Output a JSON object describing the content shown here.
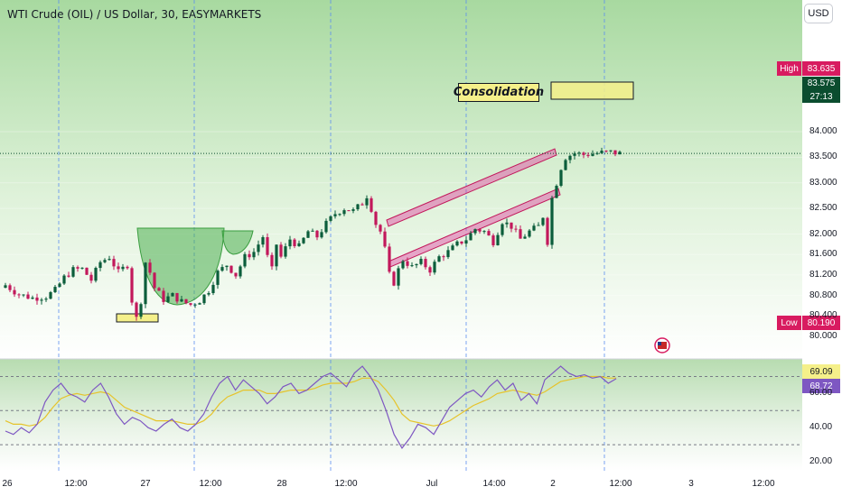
{
  "header": {
    "symbol_title": "WTI Crude (OIL) / US Dollar, 30, EASYMARKETS",
    "currency_button": "USD"
  },
  "annotations": {
    "consolidation": "Consolidation"
  },
  "price_tags": {
    "high_label": "High",
    "high_value": "83.635",
    "last_price": "83.575",
    "countdown": "27:13",
    "low_label": "Low",
    "low_value": "80.190"
  },
  "rsi_tags": {
    "ma_value": "69.09",
    "rsi_value": "68.72"
  },
  "colors": {
    "up": "#26a69a",
    "up_dark": "#0b5d3b",
    "down": "#c2185b",
    "green_zone": "#4caf50",
    "channel": "#e040a0",
    "rsi_line": "#7e57c2",
    "rsi_ma": "#e6c32a",
    "high_tag": "#d81b60",
    "last_tag": "#0b4d2f",
    "ma_tag": "#f5f08a",
    "rsi_tag": "#7e57c2"
  },
  "chart_data": [
    {
      "type": "candlestick",
      "title": "WTI Crude (OIL) / US Dollar, 30, EASYMARKETS",
      "x_ticks": [
        "26",
        "12:00",
        "27",
        "12:00",
        "28",
        "12:00",
        "Jul",
        "14:00",
        "2",
        "12:00",
        "3",
        "12:00"
      ],
      "y_ticks": [
        84.0,
        83.5,
        83.0,
        82.5,
        82.0,
        81.6,
        81.2,
        80.8,
        80.4,
        80.0
      ],
      "y_tick_labels": [
        "84.000",
        "83.500",
        "83.000",
        "82.500",
        "82.000",
        "81.600",
        "81.200",
        "80.800",
        "80.400",
        "80.000"
      ],
      "ylim": [
        79.85,
        84.25
      ],
      "high": 83.635,
      "low": 80.19,
      "last": 83.575,
      "close_path": [
        [
          0,
          81.0
        ],
        [
          3,
          80.82
        ],
        [
          6,
          80.75
        ],
        [
          9,
          80.78
        ],
        [
          11,
          80.9
        ],
        [
          13,
          81.15
        ],
        [
          15,
          81.3
        ],
        [
          17,
          81.32
        ],
        [
          19,
          81.1
        ],
        [
          21,
          81.45
        ],
        [
          23,
          81.55
        ],
        [
          25,
          81.25
        ],
        [
          27,
          81.4
        ],
        [
          28,
          80.7
        ],
        [
          29,
          80.35
        ],
        [
          30,
          80.7
        ],
        [
          31,
          81.45
        ],
        [
          32,
          81.25
        ],
        [
          33,
          80.95
        ],
        [
          35,
          80.72
        ],
        [
          37,
          80.8
        ],
        [
          39,
          80.68
        ],
        [
          41,
          80.62
        ],
        [
          43,
          80.7
        ],
        [
          45,
          80.9
        ],
        [
          47,
          81.25
        ],
        [
          49,
          81.4
        ],
        [
          51,
          81.2
        ],
        [
          53,
          81.55
        ],
        [
          55,
          81.65
        ],
        [
          57,
          81.95
        ],
        [
          58,
          81.55
        ],
        [
          59,
          81.3
        ],
        [
          60,
          81.8
        ],
        [
          61,
          81.55
        ],
        [
          63,
          81.9
        ],
        [
          65,
          81.75
        ],
        [
          67,
          82.05
        ],
        [
          69,
          81.95
        ],
        [
          71,
          82.2
        ],
        [
          73,
          82.4
        ],
        [
          75,
          82.5
        ],
        [
          77,
          82.45
        ],
        [
          79,
          82.6
        ],
        [
          80,
          82.75
        ],
        [
          81,
          82.5
        ],
        [
          82,
          82.2
        ],
        [
          83,
          82.05
        ],
        [
          84,
          81.7
        ],
        [
          85,
          81.2
        ],
        [
          86,
          81.05
        ],
        [
          87,
          81.3
        ],
        [
          88,
          81.5
        ],
        [
          90,
          81.35
        ],
        [
          92,
          81.45
        ],
        [
          94,
          81.3
        ],
        [
          96,
          81.55
        ],
        [
          98,
          81.65
        ],
        [
          100,
          81.8
        ],
        [
          102,
          81.9
        ],
        [
          104,
          82.1
        ],
        [
          106,
          82.05
        ],
        [
          108,
          81.85
        ],
        [
          110,
          82.25
        ],
        [
          112,
          82.15
        ],
        [
          114,
          81.9
        ],
        [
          116,
          82.05
        ],
        [
          118,
          82.15
        ],
        [
          119,
          82.35
        ],
        [
          120,
          81.85
        ],
        [
          121,
          82.7
        ],
        [
          122,
          83.0
        ],
        [
          123,
          83.3
        ],
        [
          124,
          83.5
        ],
        [
          126,
          83.58
        ],
        [
          128,
          83.55
        ],
        [
          130,
          83.57
        ],
        [
          132,
          83.59
        ],
        [
          134,
          83.6
        ],
        [
          136,
          83.575
        ]
      ],
      "zones": [
        {
          "name": "cup",
          "type": "cup-and-handle"
        },
        {
          "name": "channel",
          "type": "ascending-channel"
        },
        {
          "name": "consolidation",
          "type": "box",
          "label": "Consolidation"
        },
        {
          "name": "support-box",
          "type": "box"
        }
      ]
    },
    {
      "type": "line",
      "name": "RSI",
      "y_ticks": [
        60.0,
        40.0,
        20.0
      ],
      "y_tick_labels": [
        "60.00",
        "40.00",
        "20.00"
      ],
      "levels": [
        70,
        50,
        30
      ],
      "ylim": [
        16,
        82
      ],
      "series": [
        {
          "values": [
            38,
            36,
            40,
            37,
            42,
            55,
            62,
            66,
            60,
            58,
            55,
            62,
            66,
            58,
            48,
            42,
            46,
            44,
            40,
            38,
            42,
            45,
            40,
            38,
            42,
            48,
            58,
            66,
            70,
            62,
            68,
            64,
            60,
            54,
            58,
            64,
            66,
            60,
            62,
            66,
            70,
            72,
            68,
            64,
            72,
            76,
            70,
            62,
            50,
            36,
            28,
            34,
            42,
            40,
            36,
            44,
            52,
            56,
            60,
            62,
            58,
            64,
            68,
            62,
            66,
            56,
            60,
            54,
            68,
            72,
            76,
            72,
            70,
            71,
            69,
            70,
            66,
            68.72
          ]
        },
        {
          "values": [
            44,
            42,
            42,
            41,
            42,
            46,
            52,
            57,
            59,
            60,
            59,
            60,
            61,
            60,
            56,
            52,
            50,
            48,
            46,
            44,
            44,
            44,
            43,
            42,
            42,
            44,
            48,
            54,
            58,
            60,
            62,
            62,
            62,
            60,
            60,
            61,
            62,
            62,
            62,
            63,
            65,
            66,
            66,
            66,
            67,
            69,
            69,
            67,
            62,
            56,
            48,
            44,
            43,
            42,
            41,
            42,
            44,
            47,
            50,
            53,
            55,
            57,
            60,
            61,
            62,
            61,
            60,
            59,
            61,
            64,
            67,
            68,
            69,
            70,
            70,
            70,
            69,
            69.09
          ]
        }
      ]
    }
  ]
}
